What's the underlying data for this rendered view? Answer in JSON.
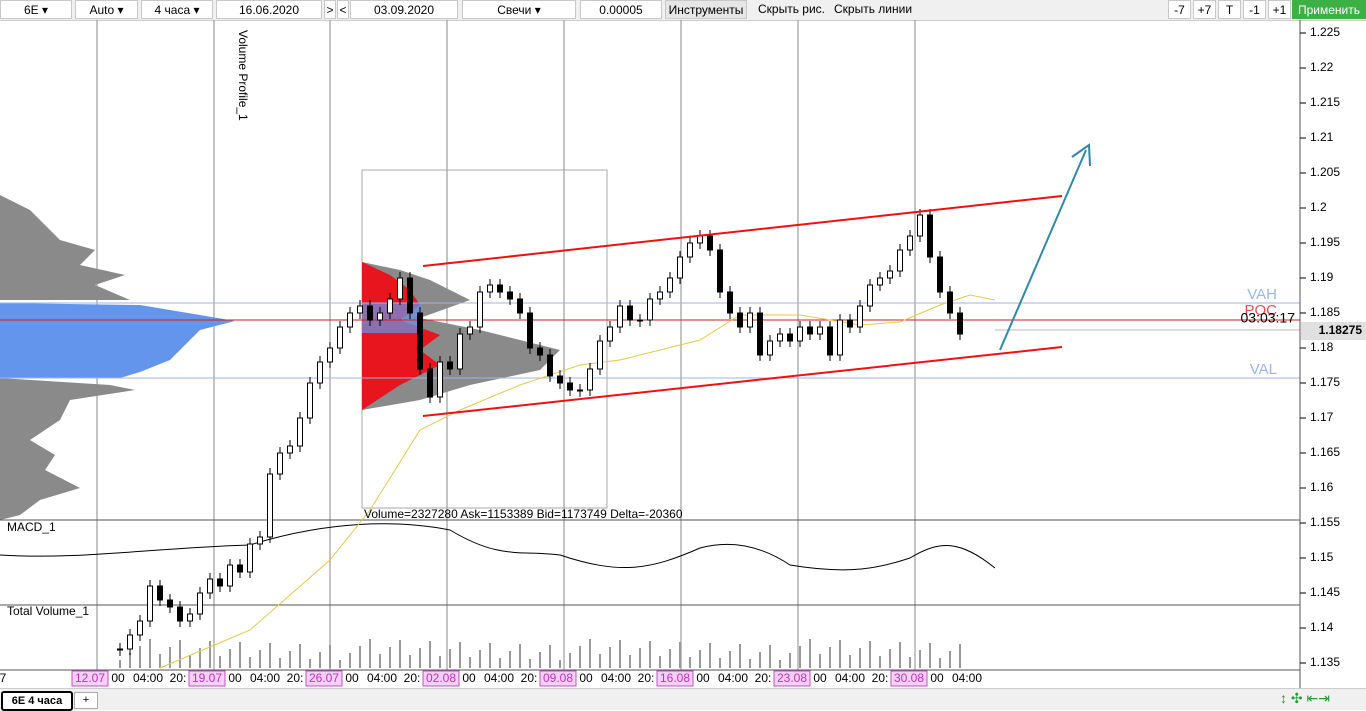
{
  "toolbar": {
    "symbol": "6E",
    "scale": "Auto",
    "timeframe": "4 часа",
    "date_from": "16.06.2020",
    "next": ">",
    "prev": "<",
    "date_to": "03.09.2020",
    "chart_style": "Свечи",
    "tick_size": "0.00005",
    "tools": "Инструменты",
    "hide_drawings": "Скрыть рис.",
    "hide_lines": "Скрыть линии",
    "buttons": [
      "-7",
      "+7",
      "T",
      "-1",
      "+1"
    ],
    "apply": "Применить"
  },
  "chart": {
    "price_ticks": [
      1.225,
      1.22,
      1.215,
      1.21,
      1.205,
      1.2,
      1.195,
      1.19,
      1.185,
      1.18,
      1.175,
      1.17,
      1.165,
      1.16,
      1.155,
      1.15,
      1.145,
      1.14,
      1.135
    ],
    "closes": [
      1.137,
      1.139,
      1.141,
      1.146,
      1.144,
      1.143,
      1.141,
      1.142,
      1.145,
      1.147,
      1.146,
      1.149,
      1.148,
      1.152,
      1.153,
      1.162,
      1.165,
      1.166,
      1.17,
      1.175,
      1.178,
      1.18,
      1.183,
      1.185,
      1.186,
      1.184,
      1.185,
      1.187,
      1.19,
      1.185,
      1.177,
      1.173,
      1.178,
      1.177,
      1.182,
      1.183,
      1.188,
      1.189,
      1.188,
      1.187,
      1.185,
      1.18,
      1.179,
      1.176,
      1.175,
      1.174,
      1.174,
      1.177,
      1.181,
      1.183,
      1.186,
      1.184,
      1.184,
      1.187,
      1.188,
      1.19,
      1.193,
      1.195,
      1.196,
      1.194,
      1.188,
      1.185,
      1.183,
      1.185,
      1.179,
      1.181,
      1.182,
      1.181,
      1.183,
      1.182,
      1.183,
      1.179,
      1.184,
      1.183,
      1.186,
      1.189,
      1.19,
      1.191,
      1.194,
      1.196,
      1.199,
      1.193,
      1.188,
      1.185,
      1.182
    ],
    "axis_labels": [
      "7",
      "12.07",
      "00",
      "04:00",
      "20:",
      "19.07",
      "00",
      "04:00",
      "20:",
      "26.07",
      "00",
      "04:00",
      "20:",
      "02.08",
      "00",
      "04:00",
      "20:",
      "09.08",
      "00",
      "04:00",
      "20:",
      "16.08",
      "00",
      "04:00",
      "20:",
      "23.08",
      "00",
      "04:00",
      "20:",
      "30.08",
      "00",
      "04:00"
    ],
    "profile_name": "Volume Profile_1",
    "vah": "VAH",
    "poc": "POC",
    "val": "VAL",
    "timer": "03:03:17",
    "last_price": "1.18275",
    "profile_stats": "Volume=2327280  Ask=1153389  Bid=1173749  Delta=-20360",
    "macd": "MACD_1",
    "total_volume": "Total Volume_1"
  },
  "tabs": {
    "active": "6E 4 часа",
    "add": "+"
  }
}
